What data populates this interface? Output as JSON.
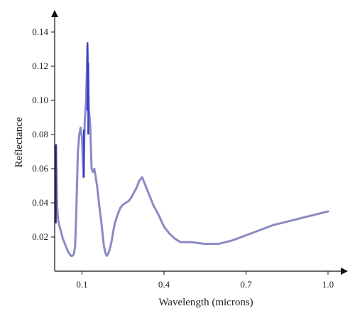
{
  "chart_data": {
    "type": "line",
    "title": "",
    "xlabel": "Wavelength (microns)",
    "ylabel": "Reflectance",
    "xlim": [
      0,
      1.05
    ],
    "ylim": [
      0,
      0.15
    ],
    "x_ticks": [
      0.1,
      0.4,
      0.7,
      1.0
    ],
    "x_tick_labels": [
      "0.1",
      "0.4",
      "0.7",
      "1.0"
    ],
    "y_ticks": [
      0.02,
      0.04,
      0.06,
      0.08,
      0.1,
      0.12,
      0.14
    ],
    "y_tick_labels": [
      "0.02",
      "0.04",
      "0.06",
      "0.08",
      "0.10",
      "0.12",
      "0.14"
    ],
    "grid": false,
    "line_color": "#8a8ac4",
    "highlight_color": "#3c3cd2",
    "series": [
      {
        "x": [
          0.005,
          0.007,
          0.009,
          0.012,
          0.016,
          0.02,
          0.025,
          0.03,
          0.035,
          0.04,
          0.045,
          0.05,
          0.055,
          0.06,
          0.065,
          0.07,
          0.075,
          0.08,
          0.085,
          0.09,
          0.095,
          0.1,
          0.105,
          0.11,
          0.115,
          0.12,
          0.125,
          0.13,
          0.135,
          0.14,
          0.145,
          0.15,
          0.155,
          0.16,
          0.165,
          0.17,
          0.175,
          0.18,
          0.185,
          0.19,
          0.195,
          0.2,
          0.205,
          0.21,
          0.215,
          0.22,
          0.23,
          0.24,
          0.25,
          0.26,
          0.27,
          0.28,
          0.29,
          0.3,
          0.31,
          0.32,
          0.33,
          0.34,
          0.35,
          0.36,
          0.37,
          0.38,
          0.4,
          0.42,
          0.44,
          0.46,
          0.5,
          0.55,
          0.6,
          0.65,
          0.7,
          0.75,
          0.8,
          0.85,
          0.9,
          0.95,
          1.0
        ],
        "y": [
          0.074,
          0.055,
          0.038,
          0.031,
          0.027,
          0.025,
          0.022,
          0.019,
          0.017,
          0.015,
          0.013,
          0.011,
          0.01,
          0.009,
          0.009,
          0.01,
          0.015,
          0.04,
          0.07,
          0.08,
          0.084,
          0.078,
          0.055,
          0.087,
          0.1,
          0.132,
          0.096,
          0.085,
          0.06,
          0.058,
          0.06,
          0.055,
          0.05,
          0.043,
          0.036,
          0.03,
          0.022,
          0.015,
          0.011,
          0.009,
          0.01,
          0.012,
          0.015,
          0.019,
          0.024,
          0.028,
          0.033,
          0.037,
          0.039,
          0.04,
          0.041,
          0.043,
          0.046,
          0.049,
          0.053,
          0.055,
          0.051,
          0.047,
          0.043,
          0.039,
          0.036,
          0.033,
          0.026,
          0.022,
          0.019,
          0.017,
          0.017,
          0.016,
          0.016,
          0.018,
          0.021,
          0.024,
          0.027,
          0.029,
          0.031,
          0.033,
          0.035
        ]
      }
    ],
    "highlight_segments": [
      {
        "x": 0.107,
        "y": [
          0.055,
          0.083
        ]
      },
      {
        "x": 0.12,
        "y": [
          0.094,
          0.134
        ]
      },
      {
        "x": 0.123,
        "y": [
          0.08,
          0.122
        ]
      }
    ],
    "left_spike": {
      "x": 0.004,
      "y": [
        0.028,
        0.074
      ]
    }
  }
}
